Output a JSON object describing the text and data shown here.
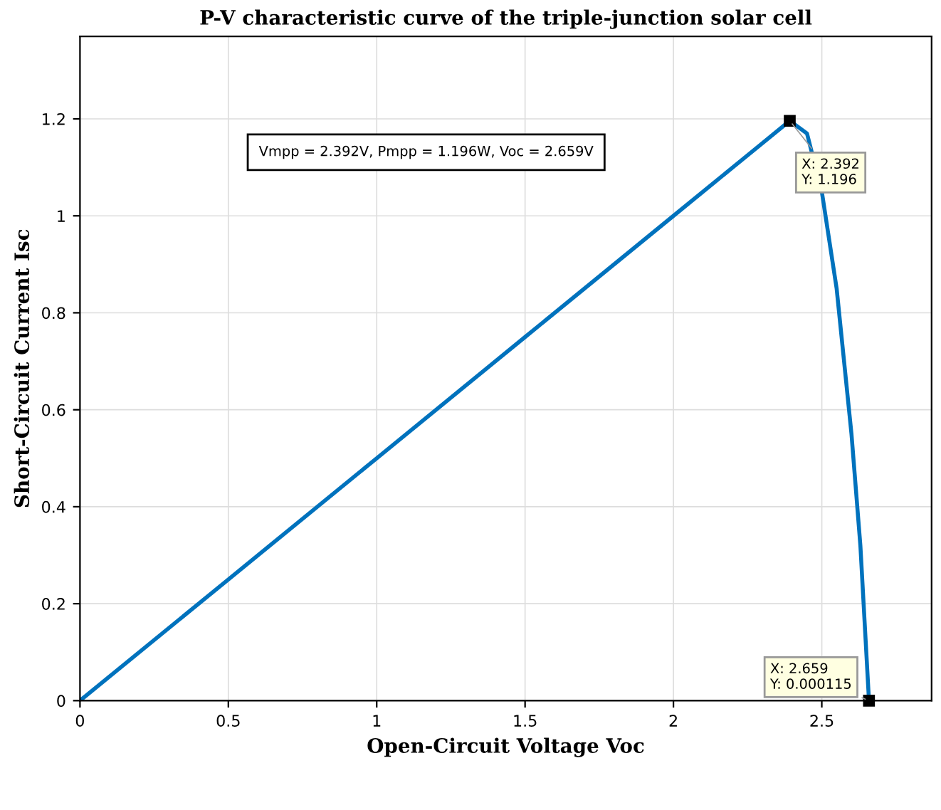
{
  "chart_data": {
    "type": "line",
    "title": "P-V characteristic curve of the triple-junction solar cell",
    "xlabel": "Open-Circuit Voltage Voc",
    "ylabel": "Short-Circuit Current Isc",
    "x": [
      0,
      0.5,
      1,
      1.5,
      2,
      2.2,
      2.3,
      2.392,
      2.45,
      2.5,
      2.55,
      2.6,
      2.63,
      2.659
    ],
    "series": [
      {
        "color": "#0072bd",
        "values": [
          0,
          0.25,
          0.5,
          0.75,
          1.0,
          1.1,
          1.15,
          1.196,
          1.17,
          1.05,
          0.85,
          0.55,
          0.32,
          0
        ]
      }
    ],
    "xlim": [
      0,
      2.87
    ],
    "ylim": [
      0,
      1.37
    ],
    "xticks": [
      0,
      0.5,
      1,
      1.5,
      2,
      2.5
    ],
    "yticks": [
      0,
      0.2,
      0.4,
      0.6,
      0.8,
      1,
      1.2
    ],
    "grid": true,
    "legend": false,
    "marker": "none",
    "line_style": "solid",
    "annotations": [
      "Vmpp = 2.392V, Pmpp = 1.196W, Voc = 2.659V",
      {
        "text": "X: 2.392\nY: 1.196",
        "x": 2.392,
        "y": 1.196
      },
      {
        "text": "X: 2.659\nY: 0.000115",
        "x": 2.659,
        "y": 0.000115
      }
    ]
  }
}
